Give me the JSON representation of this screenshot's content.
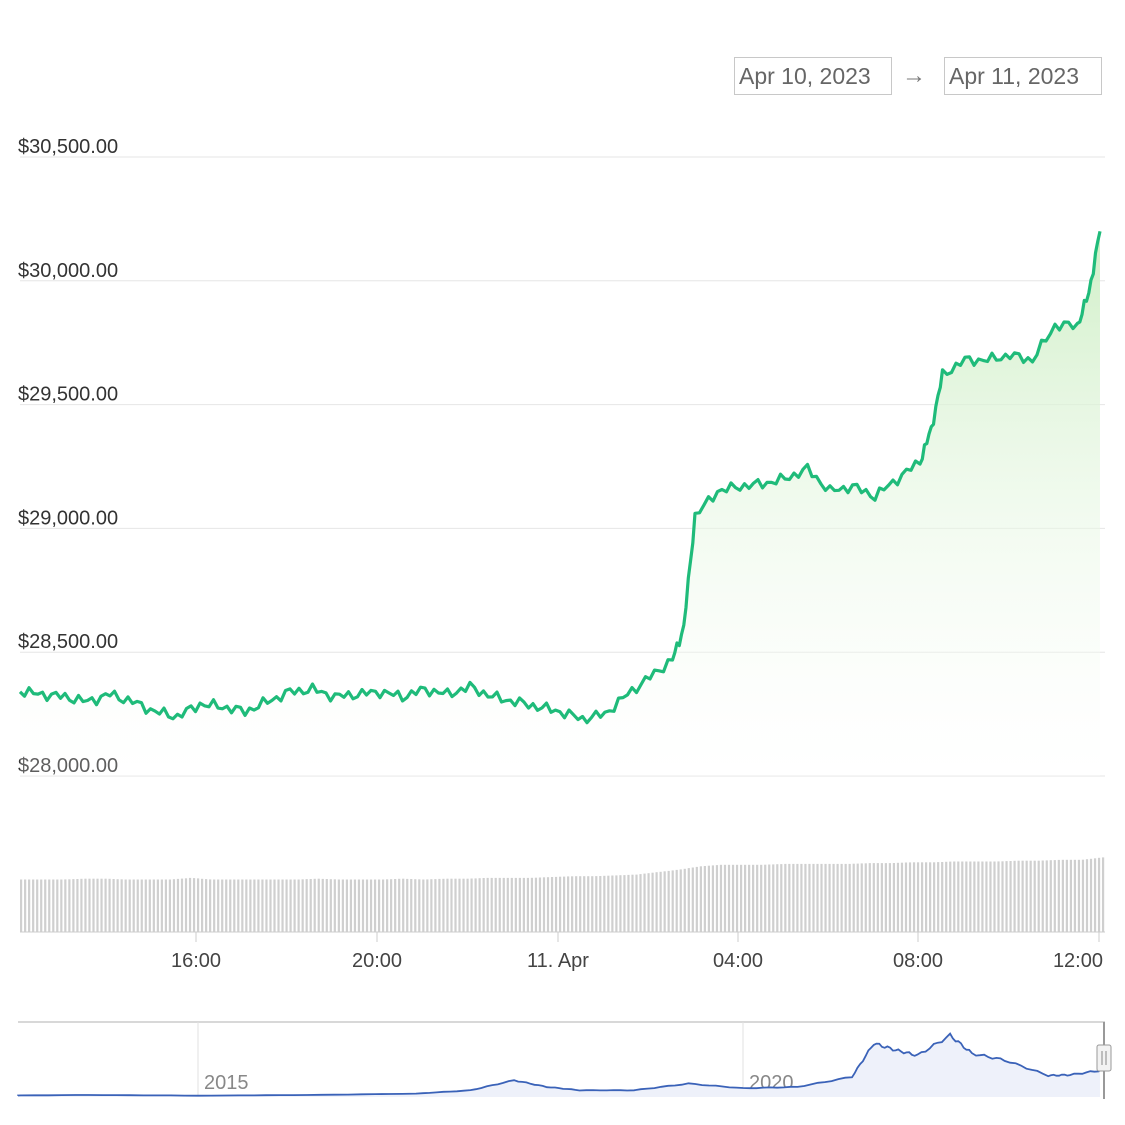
{
  "range_selector": {
    "from": "Apr 10, 2023",
    "arrow": "→",
    "to": "Apr 11, 2023"
  },
  "colors": {
    "price_line": "#1fbb7a",
    "area_top": "#cdeec4",
    "volume": "#cfcfcf",
    "navigator_line": "#3a62b8",
    "navigator_fill": "#eef1fa"
  },
  "chart_data": [
    {
      "type": "area",
      "title": "",
      "xlabel": "",
      "ylabel": "",
      "y_ticks": [
        "$28,000.00",
        "$28,500.00",
        "$29,000.00",
        "$29,500.00",
        "$30,000.00",
        "$30,500.00"
      ],
      "ylim": [
        28000,
        30500
      ],
      "x_ticks": [
        "16:00",
        "20:00",
        "11. Apr",
        "04:00",
        "08:00",
        "12:00"
      ],
      "x_start": "2023-04-10 12:00",
      "x_end": "2023-04-11 12:00",
      "grid": true,
      "series": [
        {
          "x": [
            "2023-04-10 12:00",
            "2023-04-10 12:30",
            "2023-04-10 13:00",
            "2023-04-10 13:30",
            "2023-04-10 14:00",
            "2023-04-10 14:30",
            "2023-04-10 15:00",
            "2023-04-10 15:30",
            "2023-04-10 16:00",
            "2023-04-10 16:30",
            "2023-04-10 17:00",
            "2023-04-10 17:30",
            "2023-04-10 18:00",
            "2023-04-10 18:30",
            "2023-04-10 19:00",
            "2023-04-10 19:30",
            "2023-04-10 20:00",
            "2023-04-10 20:30",
            "2023-04-10 21:00",
            "2023-04-10 21:30",
            "2023-04-10 22:00",
            "2023-04-10 22:30",
            "2023-04-10 23:00",
            "2023-04-10 23:30",
            "2023-04-11 00:00",
            "2023-04-11 00:30",
            "2023-04-11 01:00",
            "2023-04-11 01:30",
            "2023-04-11 02:00",
            "2023-04-11 02:30",
            "2023-04-11 02:45",
            "2023-04-11 03:00",
            "2023-04-11 03:30",
            "2023-04-11 04:00",
            "2023-04-11 04:30",
            "2023-04-11 05:00",
            "2023-04-11 05:30",
            "2023-04-11 06:00",
            "2023-04-11 06:30",
            "2023-04-11 07:00",
            "2023-04-11 07:30",
            "2023-04-11 08:00",
            "2023-04-11 08:15",
            "2023-04-11 08:30",
            "2023-04-11 09:00",
            "2023-04-11 09:30",
            "2023-04-11 10:00",
            "2023-04-11 10:30",
            "2023-04-11 11:00",
            "2023-04-11 11:30",
            "2023-04-11 11:45",
            "2023-04-11 12:00"
          ],
          "values": [
            28340,
            28330,
            28320,
            28300,
            28330,
            28300,
            28260,
            28240,
            28290,
            28280,
            28260,
            28300,
            28340,
            28350,
            28320,
            28330,
            28340,
            28320,
            28350,
            28330,
            28360,
            28320,
            28300,
            28280,
            28260,
            28230,
            28250,
            28330,
            28400,
            28470,
            28600,
            29050,
            29150,
            29170,
            29180,
            29200,
            29240,
            29150,
            29170,
            29130,
            29200,
            29270,
            29400,
            29620,
            29680,
            29680,
            29700,
            29680,
            29820,
            29820,
            29950,
            30200
          ]
        }
      ]
    },
    {
      "type": "bar",
      "title": "",
      "note": "volume",
      "x_start": "2023-04-10 12:00",
      "x_end": "2023-04-11 12:00",
      "values": [
        0.64,
        0.64,
        0.64,
        0.65,
        0.65,
        0.64,
        0.64,
        0.64,
        0.66,
        0.64,
        0.64,
        0.64,
        0.64,
        0.64,
        0.65,
        0.64,
        0.64,
        0.64,
        0.65,
        0.64,
        0.65,
        0.65,
        0.66,
        0.66,
        0.66,
        0.67,
        0.68,
        0.68,
        0.69,
        0.7,
        0.73,
        0.76,
        0.8,
        0.82,
        0.82,
        0.82,
        0.83,
        0.83,
        0.83,
        0.83,
        0.84,
        0.84,
        0.85,
        0.85,
        0.86,
        0.86,
        0.86,
        0.87,
        0.87,
        0.88,
        0.88,
        0.91
      ]
    },
    {
      "type": "line",
      "title": "",
      "note": "navigator",
      "x_ticks": [
        "2015",
        "2020"
      ],
      "x": [
        2010.5,
        2011,
        2012,
        2013,
        2014,
        2015,
        2016,
        2017,
        2017.5,
        2017.9,
        2018.2,
        2018.5,
        2019,
        2019.5,
        2020,
        2020.5,
        2021,
        2021.2,
        2021.4,
        2021.6,
        2021.9,
        2022.1,
        2022.4,
        2022.8,
        2023.0,
        2023.3
      ],
      "values": [
        0.02,
        0.03,
        0.02,
        0.02,
        0.03,
        0.02,
        0.03,
        0.05,
        0.1,
        0.25,
        0.15,
        0.1,
        0.1,
        0.2,
        0.13,
        0.15,
        0.3,
        0.8,
        0.7,
        0.62,
        0.92,
        0.65,
        0.55,
        0.32,
        0.33,
        0.4
      ]
    }
  ]
}
